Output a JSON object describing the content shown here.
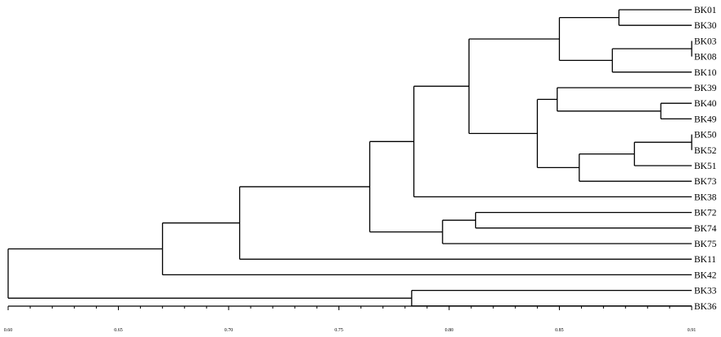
{
  "chart_data": {
    "type": "dendrogram",
    "title": "",
    "xlabel": "",
    "ylabel": "",
    "xlim": [
      0.6,
      0.91
    ],
    "x_ticks": [
      {
        "value": 0.6,
        "label": "0.60"
      },
      {
        "value": 0.65,
        "label": "0.65"
      },
      {
        "value": 0.7,
        "label": "0.70"
      },
      {
        "value": 0.75,
        "label": "0.75"
      },
      {
        "value": 0.8,
        "label": "0.80"
      },
      {
        "value": 0.85,
        "label": "0.85"
      },
      {
        "value": 0.91,
        "label": "0.91"
      }
    ],
    "leaves": [
      "BK01",
      "BK30",
      "BK03",
      "BK08",
      "BK10",
      "BK39",
      "BK40",
      "BK49",
      "BK50",
      "BK52",
      "BK51",
      "BK73",
      "BK38",
      "BK72",
      "BK74",
      "BK75",
      "BK11",
      "BK42",
      "BK33",
      "BK36"
    ],
    "tree": {
      "h": 0.6,
      "children": [
        {
          "h": 0.67,
          "children": [
            {
              "h": 0.705,
              "children": [
                {
                  "h": 0.764,
                  "children": [
                    {
                      "h": 0.784,
                      "children": [
                        {
                          "h": 0.809,
                          "children": [
                            {
                              "h": 0.85,
                              "children": [
                                {
                                  "h": 0.877,
                                  "children": [
                                    {
                                      "leaf": "BK01"
                                    },
                                    {
                                      "leaf": "BK30"
                                    }
                                  ]
                                },
                                {
                                  "h": 0.874,
                                  "children": [
                                    {
                                      "h": 0.91,
                                      "children": [
                                        {
                                          "leaf": "BK03"
                                        },
                                        {
                                          "leaf": "BK08"
                                        }
                                      ]
                                    },
                                    {
                                      "leaf": "BK10"
                                    }
                                  ]
                                }
                              ]
                            },
                            {
                              "h": 0.84,
                              "children": [
                                {
                                  "h": 0.849,
                                  "children": [
                                    {
                                      "leaf": "BK39"
                                    },
                                    {
                                      "h": 0.896,
                                      "children": [
                                        {
                                          "leaf": "BK40"
                                        },
                                        {
                                          "leaf": "BK49"
                                        }
                                      ]
                                    }
                                  ]
                                },
                                {
                                  "h": 0.859,
                                  "children": [
                                    {
                                      "h": 0.884,
                                      "children": [
                                        {
                                          "h": 0.91,
                                          "children": [
                                            {
                                              "leaf": "BK50"
                                            },
                                            {
                                              "leaf": "BK52"
                                            }
                                          ]
                                        },
                                        {
                                          "leaf": "BK51"
                                        }
                                      ]
                                    },
                                    {
                                      "leaf": "BK73"
                                    }
                                  ]
                                }
                              ]
                            }
                          ]
                        },
                        {
                          "leaf": "BK38"
                        }
                      ]
                    },
                    {
                      "h": 0.797,
                      "children": [
                        {
                          "h": 0.812,
                          "children": [
                            {
                              "leaf": "BK72"
                            },
                            {
                              "leaf": "BK74"
                            }
                          ]
                        },
                        {
                          "leaf": "BK75"
                        }
                      ]
                    }
                  ]
                },
                {
                  "leaf": "BK11"
                }
              ]
            },
            {
              "leaf": "BK42"
            }
          ]
        },
        {
          "h": 0.783,
          "children": [
            {
              "leaf": "BK33"
            },
            {
              "leaf": "BK36"
            }
          ]
        }
      ]
    }
  }
}
